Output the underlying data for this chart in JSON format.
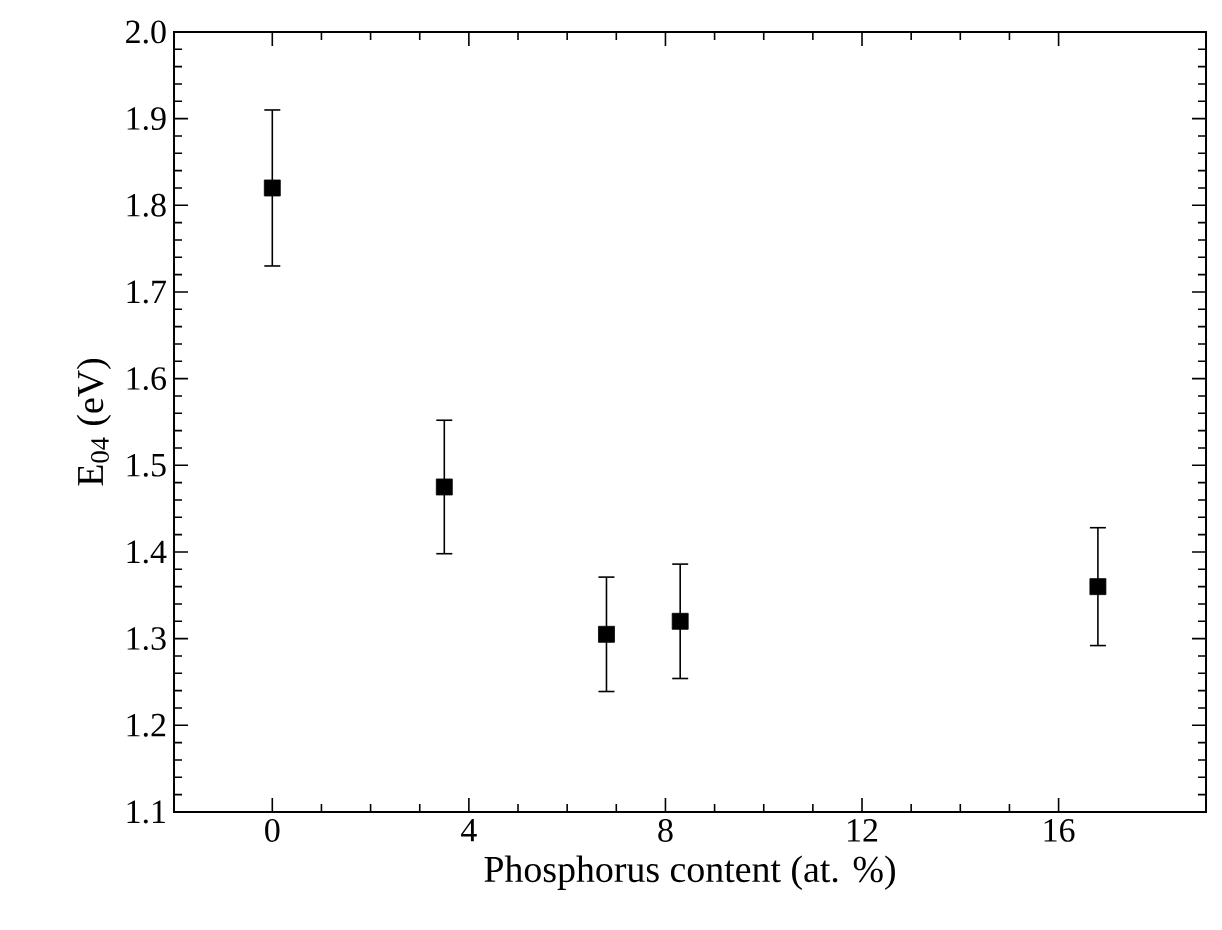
{
  "chart_data": {
    "type": "scatter",
    "xlabel": "Phosphorus content (at. %)",
    "ylabel": "E$_{04}$ (eV)",
    "x": [
      0,
      3.5,
      6.8,
      8.3,
      16.8
    ],
    "values": [
      1.82,
      1.475,
      1.305,
      1.32,
      1.36
    ],
    "errors": [
      0.09,
      0.077,
      0.066,
      0.066,
      0.068
    ],
    "color": "#000000",
    "marker": "square",
    "xlim": [
      -2,
      19
    ],
    "xticks": [
      0,
      4,
      8,
      12,
      16
    ],
    "ylim": [
      1.1,
      2.0
    ],
    "yticks": [
      1.1,
      1.2,
      1.3,
      1.4,
      1.5,
      1.6,
      1.7,
      1.8,
      1.9,
      {
        "value": 2.0,
        "label": "2.0"
      }
    ]
  }
}
